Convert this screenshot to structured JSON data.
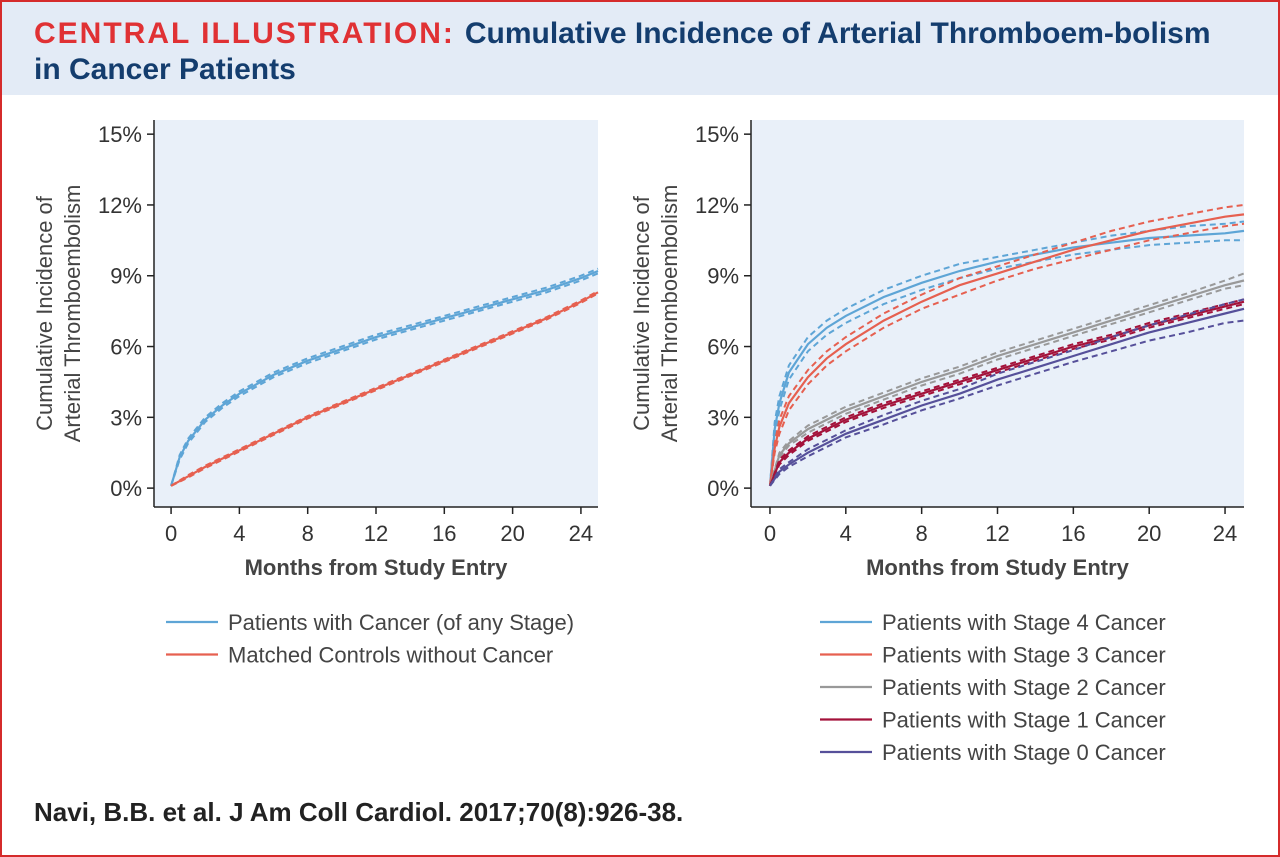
{
  "header": {
    "label": "CENTRAL ILLUSTRATION:",
    "title": "Cumulative Incidence of Arterial Thromboem-bolism in Cancer Patients"
  },
  "citation": "Navi, B.B. et al. J Am Coll Cardiol. 2017;70(8):926-38.",
  "colors": {
    "frame": "#d52b2b",
    "header_bg": "#e3ebf6",
    "plot_bg": "#e9f0f9",
    "title_text": "#143d6e"
  },
  "chart_data": [
    {
      "type": "line",
      "id": "left",
      "ylabel_lines": [
        "Cumulative Incidence of",
        "Arterial Thromboembolism"
      ],
      "xlabel": "Months from Study Entry",
      "xticks": [
        0,
        4,
        8,
        12,
        16,
        20,
        24
      ],
      "xtick_labels": [
        "0",
        "4",
        "8",
        "12",
        "16",
        "20",
        "24"
      ],
      "yticks": [
        0,
        3,
        6,
        9,
        12,
        15
      ],
      "ytick_labels": [
        "0%",
        "3%",
        "6%",
        "9%",
        "12%",
        "15%"
      ],
      "xlim": [
        -1,
        25
      ],
      "ylim": [
        -0.8,
        15.6
      ],
      "legend_position": "bottom",
      "series": [
        {
          "name": "Patients with Cancer (of any Stage)",
          "color": "#5ea5d6",
          "x": [
            0,
            0.5,
            1,
            2,
            3,
            4,
            6,
            8,
            10,
            12,
            14,
            16,
            18,
            20,
            22,
            24,
            25
          ],
          "y": [
            0.1,
            1.3,
            2.0,
            2.9,
            3.5,
            4.0,
            4.8,
            5.4,
            5.9,
            6.4,
            6.8,
            7.2,
            7.6,
            8.0,
            8.4,
            8.9,
            9.2
          ],
          "ci_lower": [
            0.1,
            1.2,
            1.9,
            2.8,
            3.4,
            3.9,
            4.7,
            5.3,
            5.8,
            6.3,
            6.7,
            7.1,
            7.5,
            7.9,
            8.3,
            8.8,
            9.1
          ],
          "ci_upper": [
            0.1,
            1.4,
            2.1,
            3.0,
            3.6,
            4.1,
            4.9,
            5.5,
            6.0,
            6.5,
            6.9,
            7.3,
            7.7,
            8.1,
            8.5,
            9.0,
            9.3
          ]
        },
        {
          "name": "Matched Controls without Cancer",
          "color": "#e66050",
          "x": [
            0,
            1,
            2,
            4,
            6,
            8,
            10,
            12,
            14,
            16,
            18,
            20,
            22,
            24,
            25
          ],
          "y": [
            0.1,
            0.5,
            0.9,
            1.6,
            2.3,
            3.0,
            3.6,
            4.2,
            4.8,
            5.4,
            6.0,
            6.6,
            7.2,
            7.9,
            8.3
          ],
          "ci_lower": [
            0.1,
            0.45,
            0.85,
            1.55,
            2.25,
            2.95,
            3.55,
            4.15,
            4.75,
            5.35,
            5.95,
            6.55,
            7.15,
            7.85,
            8.25
          ],
          "ci_upper": [
            0.1,
            0.55,
            0.95,
            1.65,
            2.35,
            3.05,
            3.65,
            4.25,
            4.85,
            5.45,
            6.05,
            6.65,
            7.25,
            7.95,
            8.35
          ]
        }
      ]
    },
    {
      "type": "line",
      "id": "right",
      "ylabel_lines": [
        "Cumulative Incidence of",
        "Arterial Thromboembolism"
      ],
      "xlabel": "Months from Study Entry",
      "xticks": [
        0,
        4,
        8,
        12,
        16,
        20,
        24
      ],
      "xtick_labels": [
        "0",
        "4",
        "8",
        "12",
        "16",
        "20",
        "24"
      ],
      "yticks": [
        0,
        3,
        6,
        9,
        12,
        15
      ],
      "ytick_labels": [
        "0%",
        "3%",
        "6%",
        "9%",
        "12%",
        "15%"
      ],
      "xlim": [
        -1,
        25
      ],
      "ylim": [
        -0.8,
        15.6
      ],
      "legend_position": "bottom-right",
      "series": [
        {
          "name": "Patients with Stage 4 Cancer",
          "color": "#5ea5d6",
          "x": [
            0,
            0.25,
            0.5,
            1,
            2,
            3,
            4,
            6,
            8,
            10,
            12,
            14,
            16,
            18,
            20,
            22,
            24,
            25
          ],
          "y": [
            0.1,
            2.5,
            3.6,
            4.9,
            6.1,
            6.8,
            7.3,
            8.1,
            8.7,
            9.2,
            9.6,
            9.9,
            10.2,
            10.4,
            10.6,
            10.7,
            10.8,
            10.9
          ],
          "ci_lower": [
            0.1,
            2.2,
            3.3,
            4.6,
            5.8,
            6.5,
            7.0,
            7.8,
            8.4,
            8.9,
            9.3,
            9.6,
            9.9,
            10.1,
            10.3,
            10.4,
            10.5,
            10.5
          ],
          "ci_upper": [
            0.1,
            2.8,
            3.9,
            5.2,
            6.4,
            7.1,
            7.6,
            8.4,
            9.0,
            9.5,
            9.8,
            10.1,
            10.4,
            10.7,
            10.9,
            11.1,
            11.2,
            11.3
          ]
        },
        {
          "name": "Patients with Stage 3 Cancer",
          "color": "#e66050",
          "x": [
            0,
            0.25,
            0.5,
            1,
            2,
            3,
            4,
            6,
            8,
            10,
            12,
            14,
            16,
            18,
            20,
            22,
            24,
            25
          ],
          "y": [
            0.1,
            1.7,
            2.6,
            3.6,
            4.7,
            5.5,
            6.1,
            7.1,
            7.9,
            8.6,
            9.1,
            9.6,
            10.1,
            10.5,
            10.9,
            11.2,
            11.5,
            11.6
          ],
          "ci_lower": [
            0.1,
            1.5,
            2.3,
            3.3,
            4.4,
            5.2,
            5.8,
            6.8,
            7.6,
            8.2,
            8.8,
            9.3,
            9.7,
            10.1,
            10.5,
            10.8,
            11.1,
            11.2
          ],
          "ci_upper": [
            0.1,
            1.9,
            2.9,
            3.9,
            5.0,
            5.8,
            6.4,
            7.4,
            8.2,
            8.9,
            9.4,
            9.9,
            10.4,
            10.9,
            11.3,
            11.6,
            11.9,
            12.0
          ]
        },
        {
          "name": "Patients with Stage 2 Cancer",
          "color": "#999999",
          "x": [
            0,
            0.5,
            1,
            2,
            4,
            6,
            8,
            10,
            12,
            14,
            16,
            18,
            20,
            22,
            24,
            25
          ],
          "y": [
            0.1,
            1.4,
            1.9,
            2.5,
            3.3,
            3.9,
            4.5,
            5.0,
            5.6,
            6.1,
            6.6,
            7.1,
            7.6,
            8.1,
            8.6,
            8.8
          ],
          "ci_lower": [
            0.1,
            1.3,
            1.8,
            2.35,
            3.15,
            3.75,
            4.35,
            4.85,
            5.45,
            5.95,
            6.45,
            6.95,
            7.45,
            7.95,
            8.45,
            8.6
          ],
          "ci_upper": [
            0.1,
            1.5,
            2.0,
            2.65,
            3.45,
            4.05,
            4.65,
            5.15,
            5.75,
            6.25,
            6.75,
            7.25,
            7.75,
            8.25,
            8.8,
            9.1
          ]
        },
        {
          "name": "Patients with Stage 1 Cancer",
          "color": "#a3123a",
          "x": [
            0,
            0.5,
            1,
            2,
            4,
            6,
            8,
            10,
            12,
            14,
            16,
            18,
            20,
            22,
            24,
            25
          ],
          "y": [
            0.1,
            1.1,
            1.5,
            2.1,
            2.9,
            3.5,
            4.0,
            4.5,
            5.0,
            5.5,
            6.0,
            6.4,
            6.9,
            7.3,
            7.7,
            7.9
          ],
          "ci_lower": [
            0.1,
            1.0,
            1.4,
            2.0,
            2.8,
            3.4,
            3.9,
            4.4,
            4.9,
            5.4,
            5.9,
            6.3,
            6.8,
            7.2,
            7.6,
            7.8
          ],
          "ci_upper": [
            0.1,
            1.2,
            1.6,
            2.2,
            3.0,
            3.6,
            4.1,
            4.6,
            5.1,
            5.6,
            6.1,
            6.5,
            7.0,
            7.4,
            7.8,
            8.0
          ]
        },
        {
          "name": "Patients with Stage 0 Cancer",
          "color": "#56509a",
          "x": [
            0,
            0.5,
            1,
            2,
            4,
            6,
            8,
            10,
            12,
            14,
            16,
            18,
            20,
            22,
            24,
            25
          ],
          "y": [
            0.1,
            0.7,
            1.0,
            1.5,
            2.3,
            2.9,
            3.5,
            4.0,
            4.6,
            5.1,
            5.6,
            6.1,
            6.6,
            7.0,
            7.4,
            7.6
          ],
          "ci_lower": [
            0.1,
            0.6,
            0.9,
            1.35,
            2.15,
            2.7,
            3.3,
            3.8,
            4.35,
            4.85,
            5.35,
            5.8,
            6.25,
            6.6,
            7.0,
            7.1
          ],
          "ci_upper": [
            0.1,
            0.8,
            1.1,
            1.65,
            2.45,
            3.1,
            3.7,
            4.2,
            4.85,
            5.35,
            5.85,
            6.4,
            6.9,
            7.35,
            7.8,
            8.0
          ]
        }
      ]
    }
  ]
}
